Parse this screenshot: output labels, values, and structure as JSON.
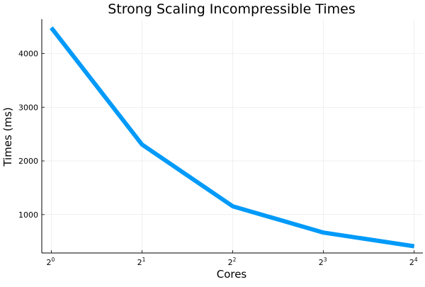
{
  "chart_data": {
    "type": "line",
    "title": "Strong Scaling Incompressible Times",
    "xlabel": "Cores",
    "ylabel": "Times (ms)",
    "x_scale": "log2",
    "x": [
      1,
      2,
      4,
      8,
      16
    ],
    "x_tick_labels": [
      {
        "base": "2",
        "exp": "0"
      },
      {
        "base": "2",
        "exp": "1"
      },
      {
        "base": "2",
        "exp": "2"
      },
      {
        "base": "2",
        "exp": "3"
      },
      {
        "base": "2",
        "exp": "4"
      }
    ],
    "y_ticks": [
      1000,
      2000,
      3000,
      4000
    ],
    "xlim": [
      0.93,
      17.1
    ],
    "ylim": [
      285,
      4640
    ],
    "grid": true,
    "legend": "none",
    "series": [
      {
        "values": [
          4480,
          2305,
          1155,
          665,
          410
        ],
        "color": "#009af9"
      }
    ]
  }
}
